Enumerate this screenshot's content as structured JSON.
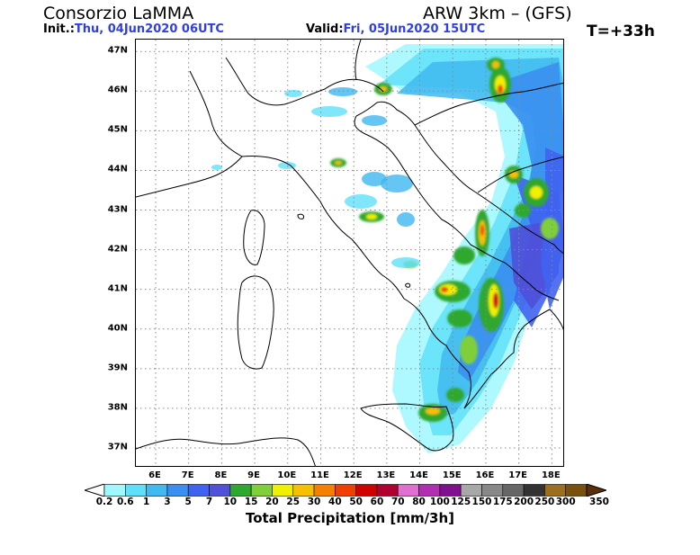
{
  "header": {
    "title": "Consorzio LaMMA",
    "model": "ARW 3km – (GFS)",
    "init_label": "Init.:",
    "init_value": "Thu, 04Jun2020 06UTC",
    "valid_label": "Valid:",
    "valid_value": "Fri, 05Jun2020 15UTC",
    "step": "T=+33h"
  },
  "map": {
    "lat_labels": [
      "47N",
      "46N",
      "45N",
      "44N",
      "43N",
      "42N",
      "41N",
      "40N",
      "39N",
      "38N",
      "37N"
    ],
    "lon_labels": [
      "6E",
      "7E",
      "8E",
      "9E",
      "10E",
      "11E",
      "12E",
      "13E",
      "14E",
      "15E",
      "16E",
      "17E",
      "18E"
    ],
    "lat_range": [
      36.5,
      47.3
    ],
    "lon_range": [
      5.4,
      18.4
    ]
  },
  "colorbar": {
    "title": "Total Precipitation [mm/3h]",
    "labels": [
      "0.2",
      "0.6",
      "1",
      "3",
      "5",
      "7",
      "10",
      "15",
      "20",
      "25",
      "30",
      "40",
      "50",
      "60",
      "70",
      "80",
      "100",
      "125",
      "150",
      "175",
      "200",
      "250",
      "300",
      "350"
    ],
    "colors": [
      "#ffffff",
      "#a0f8ff",
      "#60e0f8",
      "#40b8f0",
      "#3a8ff0",
      "#3f63f0",
      "#5050d8",
      "#2fa82f",
      "#7fcf3a",
      "#f0f000",
      "#f5c000",
      "#f58000",
      "#f04000",
      "#d00000",
      "#b00030",
      "#e070d0",
      "#b030b0",
      "#801090",
      "#a8a8a8",
      "#888888",
      "#666666",
      "#333333",
      "#9a7020",
      "#7a5010",
      "#5a3008"
    ]
  }
}
